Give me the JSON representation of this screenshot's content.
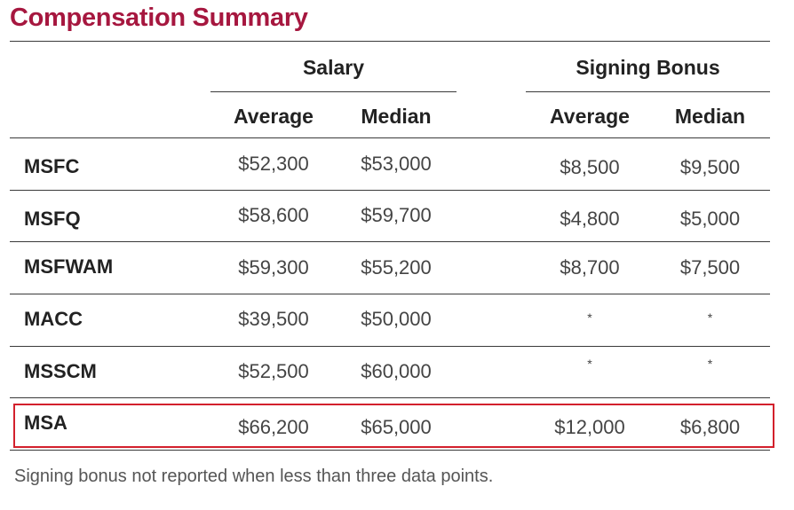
{
  "title": "Compensation Summary",
  "groups": {
    "salary": "Salary",
    "signing_bonus": "Signing Bonus"
  },
  "columns": {
    "salary_avg": "Average",
    "salary_med": "Median",
    "bonus_avg": "Average",
    "bonus_med": "Median"
  },
  "rows": [
    {
      "program": "MSFC",
      "salary_avg": "$52,300",
      "salary_med": "$53,000",
      "bonus_avg": "$8,500",
      "bonus_med": "$9,500"
    },
    {
      "program": "MSFQ",
      "salary_avg": "$58,600",
      "salary_med": "$59,700",
      "bonus_avg": "$4,800",
      "bonus_med": "$5,000"
    },
    {
      "program": "MSFWAM",
      "salary_avg": "$59,300",
      "salary_med": "$55,200",
      "bonus_avg": "$8,700",
      "bonus_med": "$7,500"
    },
    {
      "program": "MACC",
      "salary_avg": "$39,500",
      "salary_med": "$50,000",
      "bonus_avg": "*",
      "bonus_med": "*"
    },
    {
      "program": "MSSCM",
      "salary_avg": "$52,500",
      "salary_med": "$60,000",
      "bonus_avg": "*",
      "bonus_med": "*"
    },
    {
      "program": "MSA",
      "salary_avg": "$66,200",
      "salary_med": "$65,000",
      "bonus_avg": "$12,000",
      "bonus_med": "$6,800"
    }
  ],
  "highlighted_row": "MSA",
  "footnote": "Signing bonus not reported when less than three data points.",
  "colors": {
    "title": "#a6173f",
    "highlight": "#d3202c",
    "rule": "#3a3a3a"
  }
}
